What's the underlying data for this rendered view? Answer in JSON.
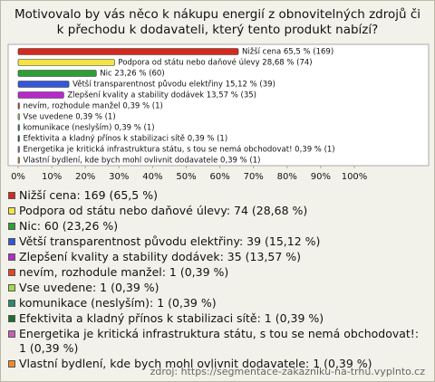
{
  "chart_data": {
    "type": "hbar",
    "title": "Motivovalo by vás něco k nákupu energií z obnovitelných zdrojů či k přechodu k dodavateli, který tento produkt nabízí?",
    "categories": [
      "Nižší cena",
      "Podpora od státu nebo daňové úlevy",
      "Nic",
      "Větší transparentnost původu elektřiny",
      "Zlepšení kvality a stability dodávek",
      "nevím, rozhodule manžel",
      "Vse uvedene",
      "komunikace (neslyším)",
      "Efektivita a kladný přínos k stabilizaci sítě",
      "Energetika je kritická infrastruktura státu, s tou se nemá obchodovat!",
      "Vlastní bydlení, kde bych mohl ovlivnit dodavatele"
    ],
    "values": [
      65.5,
      28.68,
      23.26,
      15.12,
      13.57,
      0.39,
      0.39,
      0.39,
      0.39,
      0.39,
      0.39
    ],
    "value_labels": [
      "Nižší cena 65,5 % (169)",
      "Podpora od státu nebo daňové úlevy 28,68 % (74)",
      "Nic 23,26 % (60)",
      "Větší transparentnost původu elektřiny 15,12 % (39)",
      "Zlepšení kvality a stability dodávek 13,57 % (35)",
      "nevím, rozhodule manžel 0,39 % (1)",
      "Vse uvedene 0,39 % (1)",
      "komunikace (neslyším) 0,39 % (1)",
      "Efektivita a kladný přínos k stabilizaci sítě 0,39 % (1)",
      "Energetika je kritická infrastruktura státu, s tou se nemá obchodovat! 0,39 % (1)",
      "Vlastní bydlení, kde bych mohl ovlivnit dodavatele 0,39 % (1)"
    ],
    "colors": [
      "#d42a1e",
      "#f2e447",
      "#2e9e36",
      "#3556d6",
      "#b52bc9",
      "#e2452a",
      "#a6d94a",
      "#2a8a70",
      "#1e6e2c",
      "#c660b8",
      "#ef8a2a"
    ],
    "legend_labels": [
      "Nižší cena: 169 (65,5 %)",
      "Podpora od státu nebo daňové úlevy: 74 (28,68 %)",
      "Nic: 60 (23,26 %)",
      "Větší transparentnost původu elektřiny: 39 (15,12 %)",
      "Zlepšení kvality a stability dodávek: 35 (13,57 %)",
      "nevím, rozhodule manžel: 1 (0,39 %)",
      "Vse uvedene: 1 (0,39 %)",
      "komunikace (neslyším): 1 (0,39 %)",
      "Efektivita a kladný přínos k stabilizaci sítě: 1 (0,39 %)",
      "Energetika je kritická infrastruktura státu, s tou se nemá obchodovat!: 1 (0,39 %)",
      "Vlastní bydlení, kde bych mohl ovlivnit dodavatele: 1 (0,39 %)"
    ],
    "xlim": [
      0,
      100
    ],
    "xticks": [
      {
        "value": 0,
        "label": "0%"
      },
      {
        "value": 10,
        "label": "10%"
      },
      {
        "value": 20,
        "label": "20%"
      },
      {
        "value": 30,
        "label": "30%"
      },
      {
        "value": 40,
        "label": "40%"
      },
      {
        "value": 50,
        "label": "50%"
      },
      {
        "value": 60,
        "label": "60%"
      },
      {
        "value": 70,
        "label": "70%"
      },
      {
        "value": 80,
        "label": "80%"
      },
      {
        "value": 90,
        "label": "90%"
      },
      {
        "value": 100,
        "label": "100%"
      }
    ],
    "source": "zdroj: https://segmentace-zakazniku-na-trhu.vyplnto.cz"
  }
}
